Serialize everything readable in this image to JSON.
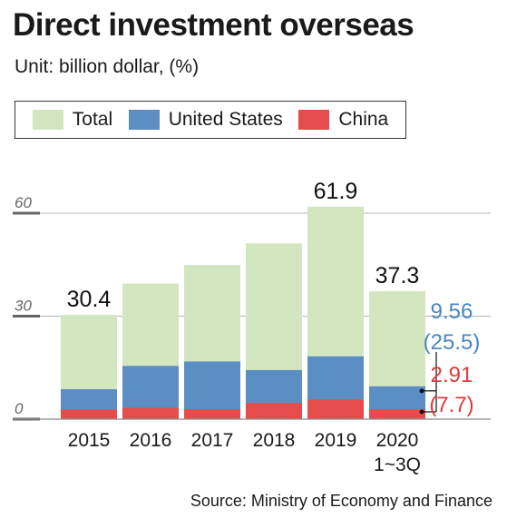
{
  "title": "Direct investment overseas",
  "subtitle": "Unit: billion dollar, (%)",
  "source": "Source: Ministry of Economy and Finance",
  "colors": {
    "total": "#d3e6c0",
    "united_states": "#5b8ec3",
    "china": "#e74c4c",
    "us_label": "#4a86c0",
    "china_label": "#e23a3a"
  },
  "chart_data": {
    "type": "bar",
    "ylim": [
      0,
      70
    ],
    "yticks": [
      0,
      30,
      60
    ],
    "legend": [
      "Total",
      "United States",
      "China"
    ],
    "legend_position": "top",
    "grid": true,
    "categories": [
      "2015",
      "2016",
      "2017",
      "2018",
      "2019",
      "2020\n1~3Q"
    ],
    "category_lines": [
      [
        "2015"
      ],
      [
        "2016"
      ],
      [
        "2017"
      ],
      [
        "2018"
      ],
      [
        "2019"
      ],
      [
        "2020",
        "1~3Q"
      ]
    ],
    "series": [
      {
        "name": "Total",
        "values": [
          30.4,
          39.5,
          44.9,
          51.2,
          61.9,
          37.3
        ]
      },
      {
        "name": "United States",
        "values": [
          8.7,
          15.5,
          16.8,
          14.3,
          18.3,
          9.56
        ]
      },
      {
        "name": "China",
        "values": [
          2.8,
          3.3,
          2.9,
          4.7,
          5.7,
          2.91
        ]
      }
    ],
    "data_labels": [
      {
        "category_index": 0,
        "series": "Total",
        "text": "30.4"
      },
      {
        "category_index": 4,
        "series": "Total",
        "text": "61.9"
      },
      {
        "category_index": 5,
        "series": "Total",
        "text": "37.3"
      }
    ],
    "annotations": [
      {
        "category_index": 5,
        "series": "United States",
        "lines": [
          "9.56",
          "(25.5)"
        ]
      },
      {
        "category_index": 5,
        "series": "China",
        "lines": [
          "2.91",
          "(7.7)"
        ]
      }
    ]
  }
}
